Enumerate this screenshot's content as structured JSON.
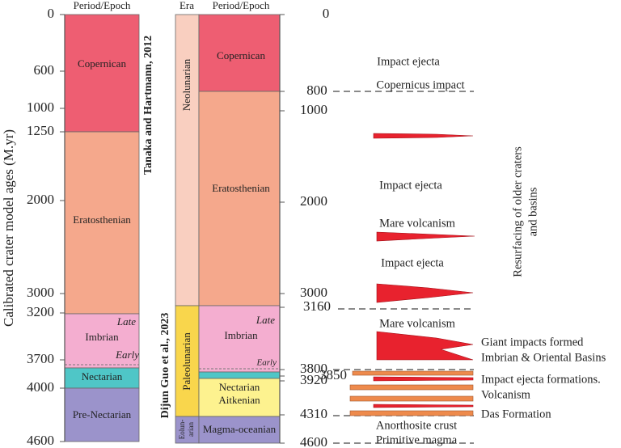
{
  "left_column": {
    "header": "Period/Epoch",
    "axis_title": "Calibrated crater model ages (M.yr)",
    "ticks": [
      "0",
      "600",
      "1000",
      "1250",
      "2000",
      "3000",
      "3200",
      "3700",
      "4000",
      "4600"
    ],
    "periods": [
      "Copernican",
      "Eratosthenian",
      "Imbrian",
      "Nectarian",
      "Pre-Nectarian"
    ],
    "imbrian_sub": [
      "Late",
      "Early"
    ]
  },
  "sources": [
    "Tanaka and Hartmann, 2012",
    "Dijun Guo et al., 2023"
  ],
  "right_column": {
    "era_header": "Era",
    "period_header": "Period/Epoch",
    "eras": [
      "Neolunarian",
      "Paleolunarian",
      "Eolun-",
      "arian"
    ],
    "periods": [
      "Copernican",
      "Eratosthenian",
      "Imbrian",
      "Late",
      "Early",
      "Nectarian",
      "Aitkenian",
      "Magma-oceanian"
    ],
    "ticks": [
      "0",
      "800",
      "1000",
      "2000",
      "3000",
      "3160",
      "3800",
      "3850",
      "3920",
      "4310",
      "4600"
    ]
  },
  "events": [
    "Impact ejecta",
    "Copernicus impact",
    "Impact ejecta",
    "Mare volcanism",
    "Impact ejecta",
    "Mare volcanism",
    "Giant impacts formed",
    "Imbrian & Oriental Basins",
    "Impact ejecta formations.",
    "Volcanism",
    "Das Formation",
    "Anorthosite crust",
    "Primitive magma"
  ],
  "resurfacing": [
    "Resurfacing of older craters",
    "and basins"
  ]
}
